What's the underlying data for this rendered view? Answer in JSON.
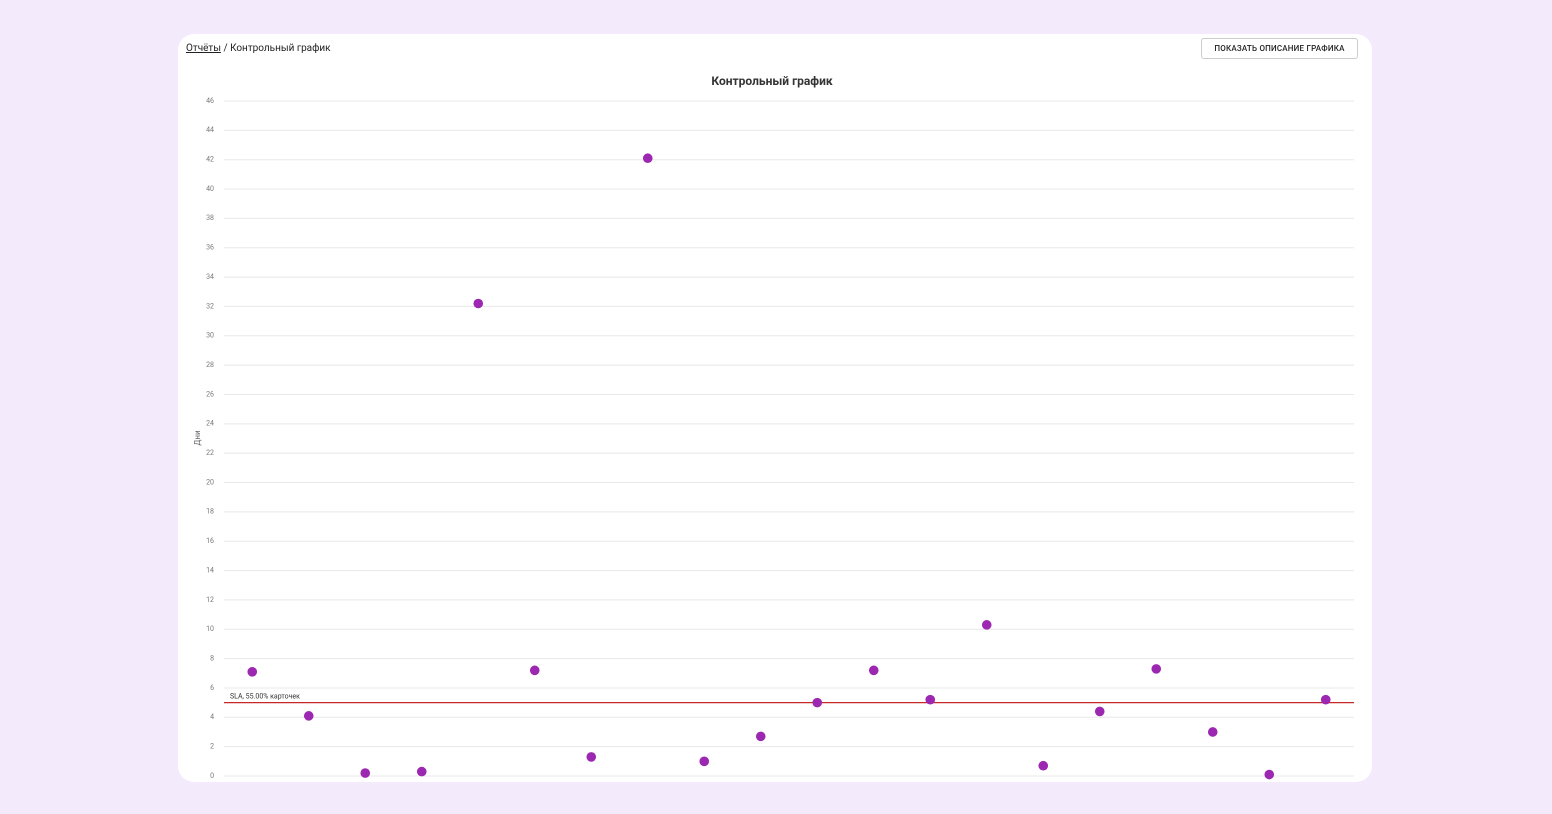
{
  "breadcrumb": {
    "link": "Отчёты",
    "separator": "/",
    "current": "Контрольный график"
  },
  "button": "ПОКАЗАТЬ ОПИСАНИЕ ГРАФИКА",
  "chart_data": {
    "type": "scatter",
    "title": "Контрольный график",
    "y_label": "Дни",
    "values": [
      7.1,
      4.1,
      0.2,
      0.3,
      32.2,
      7.2,
      1.3,
      42.1,
      1.0,
      2.7,
      5.0,
      7.2,
      5.2,
      10.3,
      0.7,
      4.4,
      7.3,
      3.0,
      0.1,
      5.2
    ],
    "color": "#9c27b0",
    "ylim": [
      0,
      46
    ],
    "yticks": [
      0,
      2,
      4,
      6,
      8,
      10,
      12,
      14,
      16,
      18,
      20,
      22,
      24,
      26,
      28,
      30,
      32,
      34,
      36,
      38,
      40,
      42,
      44,
      46
    ],
    "grid": true,
    "reference_line": {
      "value": 5.0,
      "label": "SLA, 55.00% карточек",
      "color": "#c62828"
    }
  }
}
